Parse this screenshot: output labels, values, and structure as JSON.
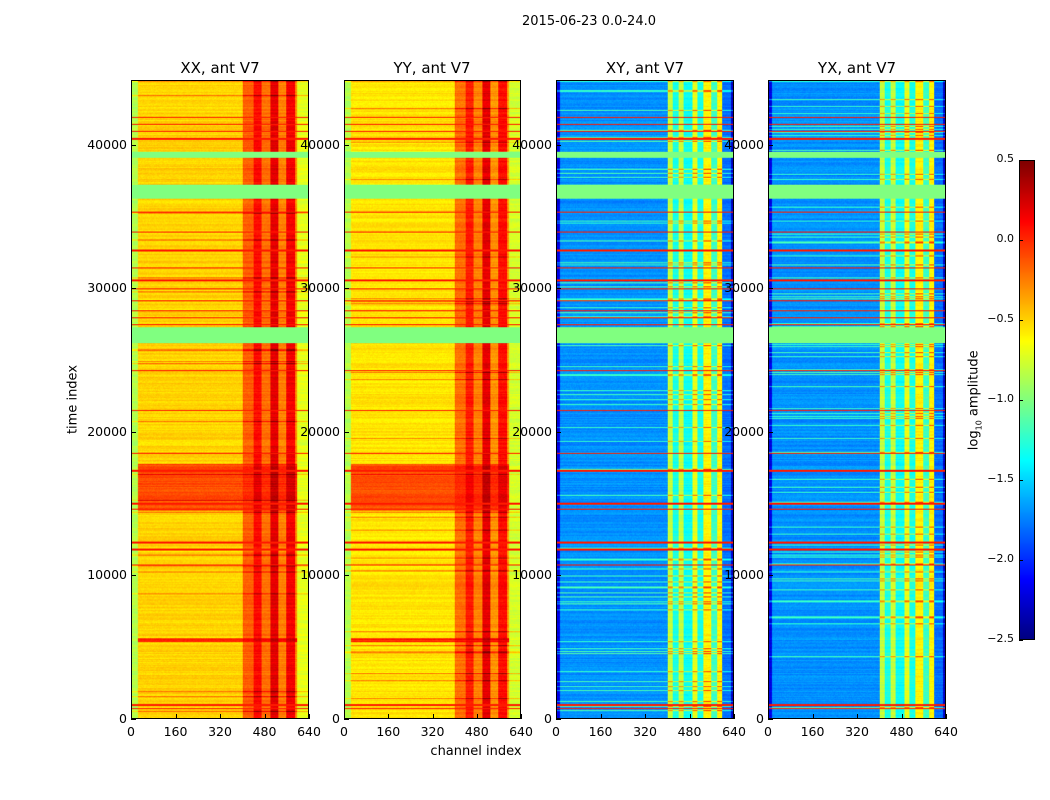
{
  "chart_data": {
    "type": "heatmap",
    "title": "2015-06-23 0.0-24.0",
    "xlabel": "channel index",
    "ylabel": "time index",
    "xlim": [
      0,
      640
    ],
    "ylim": [
      0,
      44500
    ],
    "xticks": [
      "0",
      "160",
      "320",
      "480",
      "640"
    ],
    "yticks": [
      "0",
      "10000",
      "20000",
      "30000",
      "40000"
    ],
    "colorbar": {
      "label": "log10 amplitude",
      "label_main": "log",
      "label_sub": "10",
      "label_rest": " amplitude",
      "range": [
        -2.5,
        0.5
      ],
      "ticks": [
        "0.5",
        "0.0",
        "−0.5",
        "−1.0",
        "−1.5",
        "−2.0",
        "−2.5"
      ],
      "colormap": "jet"
    },
    "panels": [
      {
        "title": "XX, ant V7",
        "channel_profile": [
          [
            0,
            20,
            -0.85
          ],
          [
            20,
            400,
            -0.5
          ],
          [
            400,
            440,
            -0.15
          ],
          [
            440,
            470,
            0.1
          ],
          [
            470,
            500,
            -0.2
          ],
          [
            500,
            530,
            0.2
          ],
          [
            530,
            560,
            -0.25
          ],
          [
            560,
            590,
            0.15
          ],
          [
            590,
            600,
            -0.3
          ],
          [
            600,
            640,
            -0.7
          ]
        ],
        "time_bands": [
          [
            14500,
            17800,
            -0.1
          ],
          [
            5300,
            5600,
            0.0
          ]
        ]
      },
      {
        "title": "YY, ant V7",
        "channel_profile": [
          [
            0,
            20,
            -0.85
          ],
          [
            20,
            400,
            -0.55
          ],
          [
            400,
            440,
            -0.2
          ],
          [
            440,
            470,
            0.05
          ],
          [
            470,
            500,
            -0.25
          ],
          [
            500,
            530,
            0.2
          ],
          [
            530,
            560,
            -0.3
          ],
          [
            560,
            590,
            0.1
          ],
          [
            590,
            600,
            -0.35
          ],
          [
            600,
            640,
            -0.75
          ]
        ],
        "time_bands": [
          [
            14500,
            17800,
            -0.1
          ],
          [
            5300,
            5600,
            0.0
          ]
        ]
      },
      {
        "title": "XY, ant V7",
        "channel_profile": [
          [
            0,
            10,
            -2.2
          ],
          [
            10,
            400,
            -1.7
          ],
          [
            400,
            420,
            -0.8
          ],
          [
            420,
            440,
            -1.3
          ],
          [
            440,
            460,
            -0.8
          ],
          [
            460,
            490,
            -1.35
          ],
          [
            490,
            510,
            -0.7
          ],
          [
            510,
            530,
            -1.3
          ],
          [
            530,
            560,
            -0.6
          ],
          [
            560,
            580,
            -1.2
          ],
          [
            580,
            600,
            -0.6
          ],
          [
            600,
            630,
            -1.8
          ],
          [
            630,
            640,
            -2.3
          ]
        ],
        "time_bands": []
      },
      {
        "title": "YX, ant V7",
        "channel_profile": [
          [
            0,
            10,
            -2.2
          ],
          [
            10,
            400,
            -1.7
          ],
          [
            400,
            420,
            -0.8
          ],
          [
            420,
            440,
            -1.3
          ],
          [
            440,
            460,
            -0.8
          ],
          [
            460,
            490,
            -1.35
          ],
          [
            490,
            510,
            -0.7
          ],
          [
            510,
            530,
            -1.3
          ],
          [
            530,
            560,
            -0.6
          ],
          [
            560,
            580,
            -1.2
          ],
          [
            580,
            600,
            -0.6
          ],
          [
            600,
            630,
            -1.8
          ],
          [
            630,
            640,
            -2.3
          ]
        ],
        "time_bands": []
      }
    ],
    "flagged_bands": [
      [
        26200,
        27300,
        -1.0
      ],
      [
        36300,
        37300,
        -1.0
      ],
      [
        39200,
        39600,
        -1.0
      ]
    ],
    "red_lines": [
      700,
      950,
      10700,
      11800,
      12300,
      14600,
      15000,
      17300,
      18500,
      21500,
      24300,
      27500,
      28000,
      28500,
      29200,
      30000,
      30600,
      31500,
      32700,
      34000,
      35400,
      40500,
      41000,
      41500,
      42000
    ]
  }
}
